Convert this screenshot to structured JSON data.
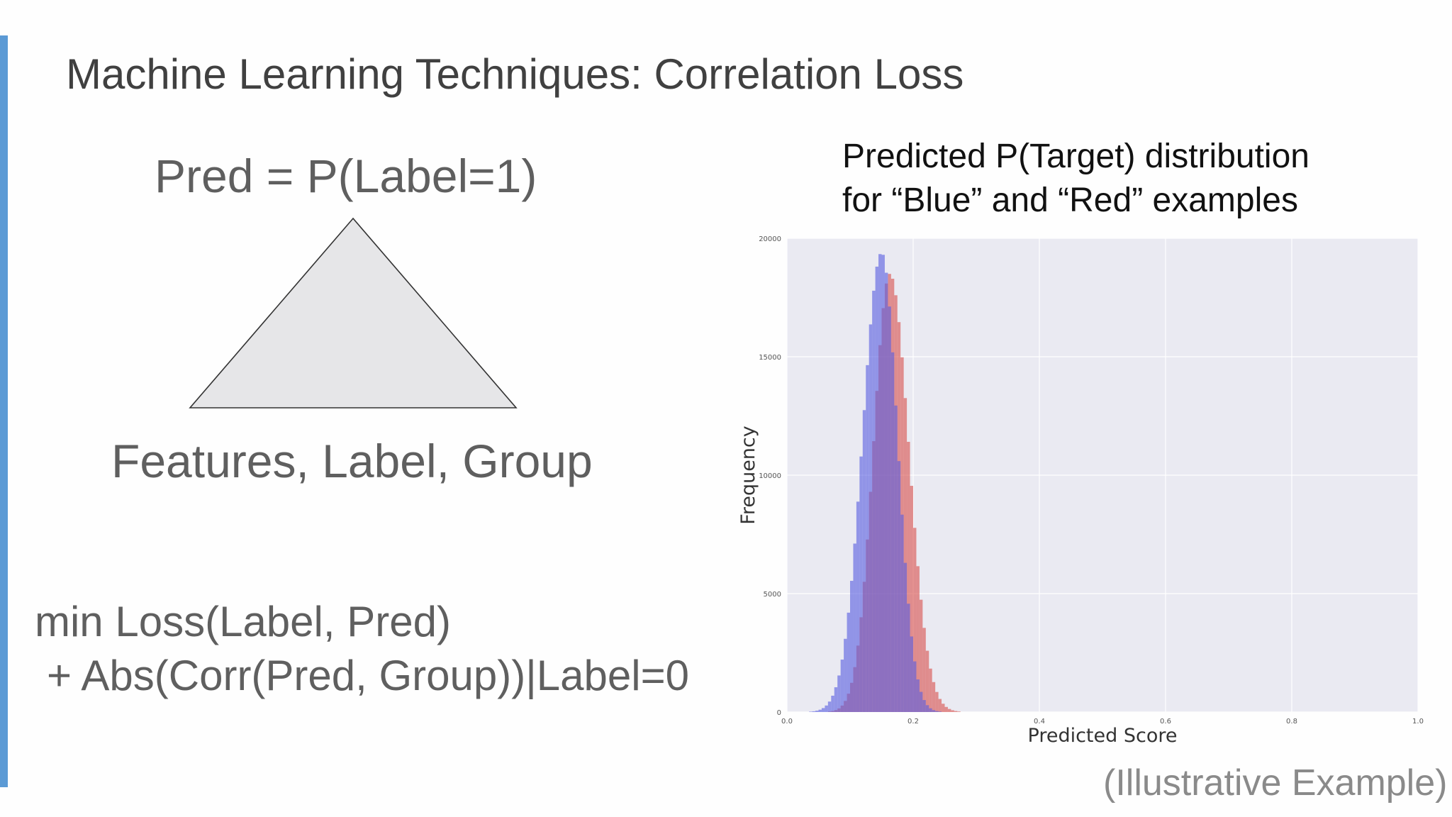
{
  "slide": {
    "title": "Machine Learning Techniques:  Correlation Loss",
    "accent_color": "#5b9ad5",
    "model": {
      "output_label": "Pred = P(Label=1)",
      "input_label": "Features, Label, Group"
    },
    "objective": {
      "line1": "min Loss(Label, Pred)",
      "line2": " + Abs(Corr(Pred, Group))|Label=0"
    },
    "chart_heading": {
      "line1": "Predicted P(Target) distribution",
      "line2": "for “Blue” and “Red” examples"
    },
    "footnote": "(Illustrative Example)"
  },
  "chart_data": {
    "type": "histogram",
    "title": "",
    "xlabel": "Predicted Score",
    "ylabel": "Frequency",
    "xlim": [
      0.0,
      1.0
    ],
    "ylim": [
      0,
      20000
    ],
    "xticks": [
      "0.0",
      "0.2",
      "0.4",
      "0.6",
      "0.8",
      "1.0"
    ],
    "yticks": [
      "0",
      "5000",
      "10000",
      "15000",
      "20000"
    ],
    "grid": true,
    "background": "#eaeaf2",
    "series": [
      {
        "color": "#d9534f",
        "peak_x": 0.163,
        "peak_y": 18500,
        "left_sd": 0.026,
        "right_sd": 0.03
      },
      {
        "color": "#5b5fe0",
        "peak_x": 0.15,
        "peak_y": 19400,
        "left_sd": 0.03,
        "right_sd": 0.025
      }
    ],
    "bins": 200
  }
}
